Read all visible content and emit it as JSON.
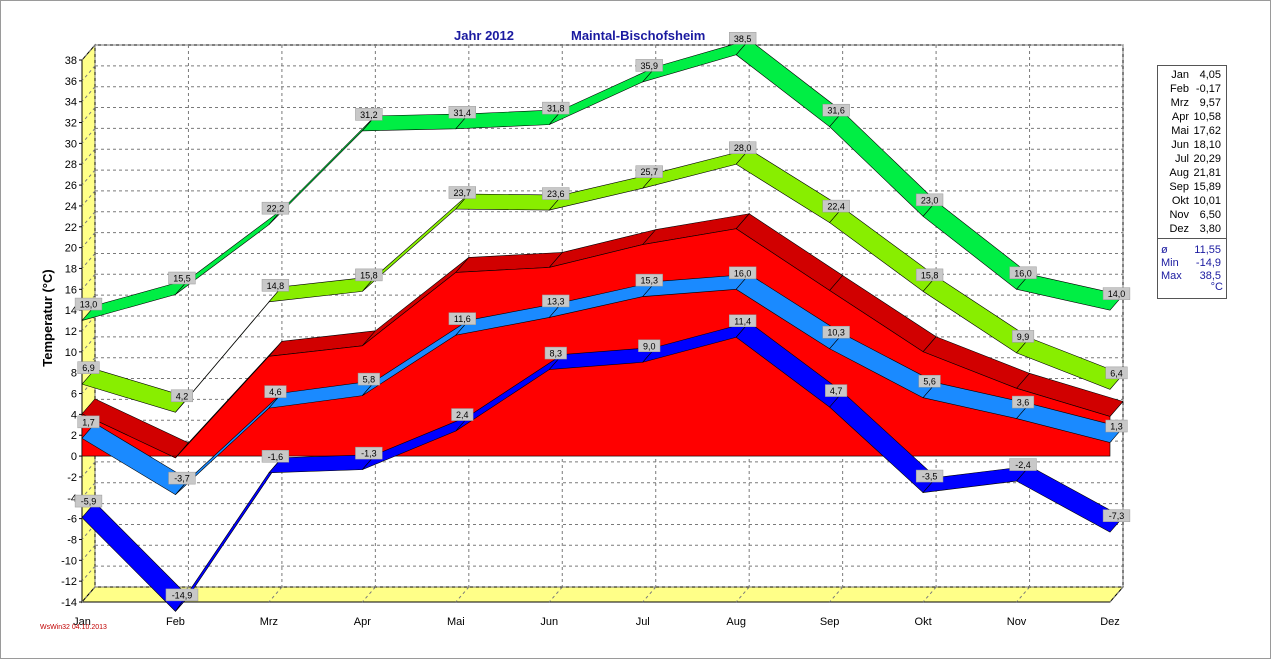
{
  "header": {
    "year_label": "Jahr  2012",
    "station": "Maintal-Bischofsheim"
  },
  "credit": "WsWin32  04.10.2013",
  "legend": {
    "monthly_means": [
      {
        "month": "Jan",
        "value": "4,05"
      },
      {
        "month": "Feb",
        "value": "-0,17"
      },
      {
        "month": "Mrz",
        "value": "9,57"
      },
      {
        "month": "Apr",
        "value": "10,58"
      },
      {
        "month": "Mai",
        "value": "17,62"
      },
      {
        "month": "Jun",
        "value": "18,10"
      },
      {
        "month": "Jul",
        "value": "20,29"
      },
      {
        "month": "Aug",
        "value": "21,81"
      },
      {
        "month": "Sep",
        "value": "15,89"
      },
      {
        "month": "Okt",
        "value": "10,01"
      },
      {
        "month": "Nov",
        "value": "6,50"
      },
      {
        "month": "Dez",
        "value": "3,80"
      }
    ],
    "stats": [
      {
        "label": "ø",
        "value": "11,55"
      },
      {
        "label": "Min",
        "value": "-14,9"
      },
      {
        "label": "Max",
        "value": "38,5"
      }
    ],
    "unit": "°C"
  },
  "chart_data": {
    "type": "area",
    "title": "Jahr  2012   Maintal-Bischofsheim",
    "xlabel": "",
    "ylabel": "Temperatur  (°C)",
    "categories": [
      "Jan",
      "Feb",
      "Mrz",
      "Apr",
      "Mai",
      "Jun",
      "Jul",
      "Aug",
      "Sep",
      "Okt",
      "Nov",
      "Dez"
    ],
    "ylim": [
      -14,
      38
    ],
    "yticks": [
      -14,
      -12,
      -10,
      -8,
      -6,
      -4,
      -2,
      0,
      2,
      4,
      6,
      8,
      10,
      12,
      14,
      16,
      18,
      20,
      22,
      24,
      26,
      28,
      30,
      32,
      34,
      36,
      38
    ],
    "grid": true,
    "series": [
      {
        "key": "absmax",
        "values": [
          13.0,
          15.5,
          22.2,
          31.2,
          31.4,
          31.8,
          35.9,
          38.5,
          31.6,
          23.0,
          16.0,
          14.0
        ],
        "labels": [
          "13,0",
          "15,5",
          "22,2",
          "31,2",
          "31,4",
          "31,8",
          "35,9",
          "38,5",
          "31,6",
          "23,0",
          "16,0",
          "14,0"
        ],
        "color": "#00ee44"
      },
      {
        "key": "meanmax",
        "values": [
          6.9,
          4.2,
          14.8,
          15.8,
          23.7,
          23.6,
          25.7,
          28.0,
          22.4,
          15.8,
          9.9,
          6.4
        ],
        "labels": [
          "6,9",
          "4,2",
          "14,8",
          "15,8",
          "23,7",
          "23,6",
          "25,7",
          "28,0",
          "22,4",
          "15,8",
          "9,9",
          "6,4"
        ],
        "color": "#88ee00"
      },
      {
        "key": "mean",
        "values": [
          4.05,
          -0.17,
          9.57,
          10.58,
          17.62,
          18.1,
          20.29,
          21.81,
          15.89,
          10.01,
          6.5,
          3.8
        ],
        "color": "#ff0000"
      },
      {
        "key": "meanmin",
        "values": [
          1.7,
          -3.7,
          4.6,
          5.8,
          11.6,
          13.3,
          15.3,
          16.0,
          10.3,
          5.6,
          3.6,
          1.3
        ],
        "labels": [
          "1,7",
          "-3,7",
          "4,6",
          "5,8",
          "11,6",
          "13,3",
          "15,3",
          "16,0",
          "10,3",
          "5,6",
          "3,6",
          "1,3"
        ],
        "color": "#1a8aff"
      },
      {
        "key": "absmin",
        "values": [
          -5.9,
          -14.9,
          -1.6,
          -1.3,
          2.4,
          8.3,
          9.0,
          11.4,
          4.7,
          -3.5,
          -2.4,
          -7.3
        ],
        "labels": [
          "-5,9",
          "-14,9",
          "-1,6",
          "-1,3",
          "2,4",
          "8,3",
          "9,0",
          "11,4",
          "4,7",
          "-3,5",
          "-2,4",
          "-7,3"
        ],
        "color": "#0000ff"
      }
    ]
  }
}
